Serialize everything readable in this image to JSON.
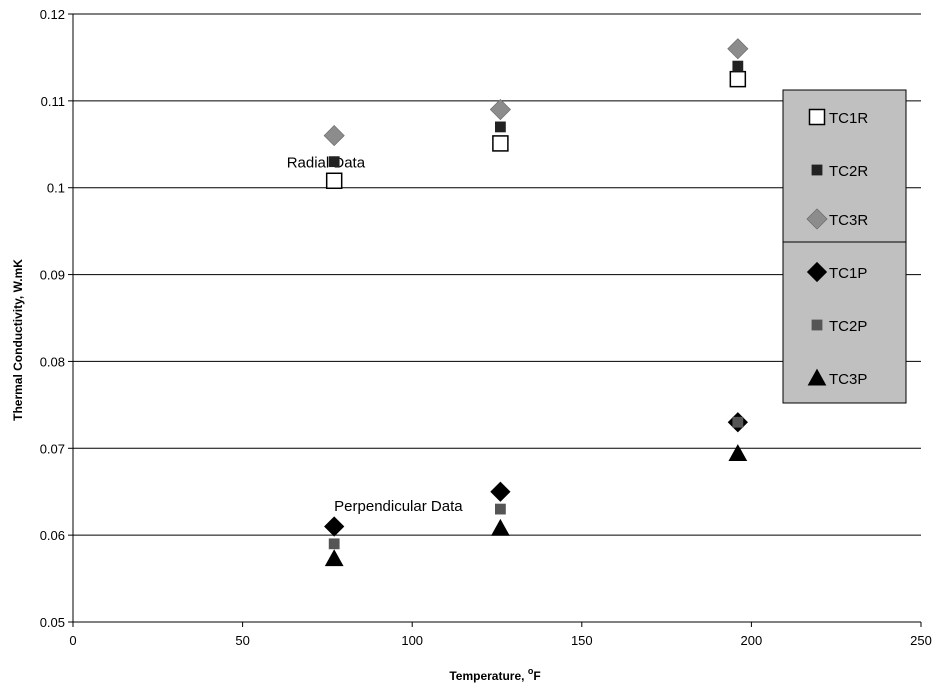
{
  "chart_data": {
    "type": "scatter",
    "title": "",
    "xlabel": "Temperature, ",
    "xlabel_unit_superscript": "o",
    "xlabel_unit": "F",
    "ylabel": "Thermal Conductivity, W.mK",
    "xlim": [
      0,
      250
    ],
    "ylim": [
      0.05,
      0.12
    ],
    "xticks": [
      "0",
      "50",
      "100",
      "150",
      "200",
      "250"
    ],
    "yticks": [
      "0.05",
      "0.06",
      "0.07",
      "0.08",
      "0.09",
      "0.1",
      "0.11",
      "0.12"
    ],
    "grid": "horizontal",
    "legend_position": "right",
    "annotations": [
      {
        "text": "Radial Data",
        "x": 63,
        "y": 0.1023
      },
      {
        "text": "Perpendicular Data",
        "x": 77,
        "y": 0.0628
      }
    ],
    "series": [
      {
        "name": "TC1R",
        "marker": "square-open",
        "color": "#000000",
        "x": [
          77,
          126,
          196
        ],
        "y": [
          0.1008,
          0.1051,
          0.1125
        ]
      },
      {
        "name": "TC2R",
        "marker": "square",
        "color": "#222222",
        "x": [
          77,
          126,
          196
        ],
        "y": [
          0.103,
          0.107,
          0.114
        ]
      },
      {
        "name": "TC3R",
        "marker": "diamond",
        "color": "#8c8c8c",
        "x": [
          77,
          126,
          196
        ],
        "y": [
          0.106,
          0.109,
          0.116
        ]
      },
      {
        "name": "TC1P",
        "marker": "diamond",
        "color": "#000000",
        "x": [
          77,
          126,
          196
        ],
        "y": [
          0.061,
          0.065,
          0.073
        ]
      },
      {
        "name": "TC2P",
        "marker": "square",
        "color": "#555555",
        "x": [
          77,
          126,
          196
        ],
        "y": [
          0.059,
          0.063,
          0.073
        ]
      },
      {
        "name": "TC3P",
        "marker": "triangle",
        "color": "#000000",
        "x": [
          77,
          126,
          196
        ],
        "y": [
          0.0573,
          0.0608,
          0.0694
        ]
      }
    ]
  }
}
